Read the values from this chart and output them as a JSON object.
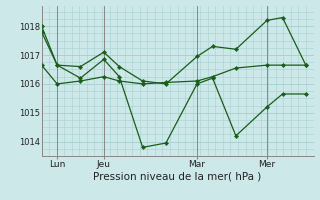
{
  "background_color": "#cce8e8",
  "grid_color": "#aad0d0",
  "line_color": "#1a5c1a",
  "marker_color": "#1a5c1a",
  "xlabel": "Pression niveau de la mer( hPa )",
  "ylim": [
    1013.5,
    1018.7
  ],
  "yticks": [
    1014,
    1015,
    1016,
    1017,
    1018
  ],
  "xlim": [
    0,
    35
  ],
  "xtick_positions": [
    2,
    8,
    20,
    29
  ],
  "xtick_labels": [
    "Lun",
    "Jeu",
    "Mar",
    "Mer"
  ],
  "vline_positions": [
    2,
    8,
    20,
    29
  ],
  "series": [
    {
      "x": [
        0,
        2,
        5,
        8,
        10,
        13,
        16,
        20,
        22,
        25,
        29,
        31,
        34
      ],
      "y": [
        1018.0,
        1016.65,
        1016.6,
        1017.1,
        1016.6,
        1016.1,
        1016.0,
        1016.95,
        1017.3,
        1017.2,
        1018.2,
        1018.3,
        1016.65
      ]
    },
    {
      "x": [
        0,
        2,
        5,
        8,
        10,
        13,
        16,
        20,
        22,
        25,
        29,
        31,
        34
      ],
      "y": [
        1017.8,
        1016.65,
        1016.2,
        1016.85,
        1016.25,
        1013.8,
        1013.95,
        1016.0,
        1016.2,
        1014.2,
        1015.2,
        1015.65,
        1015.65
      ]
    },
    {
      "x": [
        0,
        2,
        5,
        8,
        10,
        13,
        16,
        20,
        22,
        25,
        29,
        31,
        34
      ],
      "y": [
        1016.65,
        1016.0,
        1016.1,
        1016.25,
        1016.1,
        1016.0,
        1016.05,
        1016.1,
        1016.25,
        1016.55,
        1016.65,
        1016.65,
        1016.65
      ]
    }
  ],
  "ytick_fontsize": 6,
  "xtick_fontsize": 6.5,
  "xlabel_fontsize": 7.5,
  "linewidth": 0.9,
  "markersize": 2.2
}
